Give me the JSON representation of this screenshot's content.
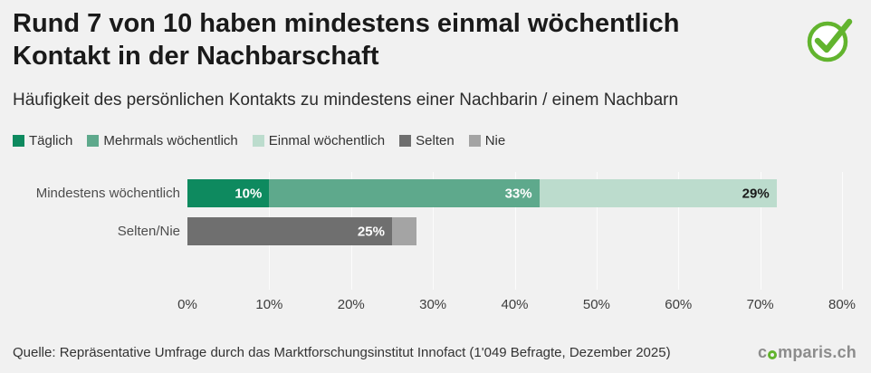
{
  "header": {
    "title_line1": "Rund 7 von 10 haben mindestens einmal wöchentlich",
    "title_line2": "Kontakt in der Nachbarschaft",
    "subtitle": "Häufigkeit des persönlichen Kontakts zu mindestens einer Nachbarin / einem Nachbarn"
  },
  "colors": {
    "background": "#f1f1f1",
    "brand_green": "#62b42e",
    "title_text": "#1a1a1a"
  },
  "chart_data": {
    "type": "bar",
    "orientation": "horizontal",
    "stacked": true,
    "title": "Rund 7 von 10 haben mindestens einmal wöchentlich Kontakt in der Nachbarschaft",
    "subtitle": "Häufigkeit des persönlichen Kontakts zu mindestens einer Nachbarin / einem Nachbarn",
    "categories": [
      "Mindestens wöchentlich",
      "Selten/Nie"
    ],
    "series": [
      {
        "name": "Täglich",
        "color": "#0e8a5f",
        "label_color": "#ffffff",
        "values": [
          10,
          0
        ]
      },
      {
        "name": "Mehrmals wöchentlich",
        "color": "#5ea98c",
        "label_color": "#ffffff",
        "values": [
          33,
          0
        ]
      },
      {
        "name": "Einmal wöchentlich",
        "color": "#bcdccd",
        "label_color": "#1a1a1a",
        "values": [
          29,
          0
        ]
      },
      {
        "name": "Selten",
        "color": "#6f6f6f",
        "label_color": "#ffffff",
        "values": [
          0,
          25
        ]
      },
      {
        "name": "Nie",
        "color": "#a4a4a4",
        "label_color": "#ffffff",
        "values": [
          0,
          3
        ]
      }
    ],
    "value_suffix": "%",
    "min_label_value": 5,
    "xlim": [
      0,
      80
    ],
    "x_ticks": [
      "0%",
      "10%",
      "20%",
      "30%",
      "40%",
      "50%",
      "60%",
      "70%",
      "80%"
    ],
    "grid": "subtle white vertical lines at 10% intervals",
    "legend_position": "top"
  },
  "footer": {
    "source": "Quelle: Repräsentative Umfrage durch das Marktforschungsinstitut Innofact (1'049 Befragte, Dezember 2025)",
    "logo_text": "comparis.ch",
    "logo_text_pre": "c",
    "logo_text_post": "mparis.ch"
  }
}
